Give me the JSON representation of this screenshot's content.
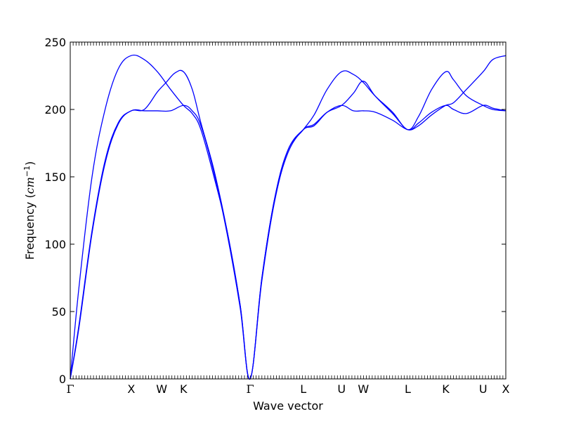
{
  "chart_data": {
    "type": "line",
    "title": "",
    "xlabel": "Wave vector",
    "ylabel": {
      "prefix": "Frequency (",
      "math": "cm",
      "sup": "−1",
      "suffix": ")"
    },
    "ylim": [
      0,
      250
    ],
    "xlim": [
      0,
      1
    ],
    "yticks": [
      0,
      50,
      100,
      150,
      200,
      250
    ],
    "xticks": [
      {
        "label": "Γ",
        "x": 0.0
      },
      {
        "label": "X",
        "x": 0.14
      },
      {
        "label": "W",
        "x": 0.21
      },
      {
        "label": "K",
        "x": 0.26
      },
      {
        "label": "Γ",
        "x": 0.413
      },
      {
        "label": "L",
        "x": 0.535
      },
      {
        "label": "U",
        "x": 0.623
      },
      {
        "label": "W",
        "x": 0.673
      },
      {
        "label": "L",
        "x": 0.775
      },
      {
        "label": "K",
        "x": 0.862
      },
      {
        "label": "U",
        "x": 0.948
      },
      {
        "label": "X",
        "x": 1.0
      }
    ],
    "line_color": "#0000ff",
    "grid": false,
    "legend": "none",
    "series": [
      {
        "points": [
          [
            0,
            0
          ],
          [
            0.02,
            68
          ],
          [
            0.05,
            150
          ],
          [
            0.08,
            200
          ],
          [
            0.11,
            230
          ],
          [
            0.14,
            240
          ],
          [
            0.17,
            237
          ],
          [
            0.2,
            228
          ],
          [
            0.23,
            215
          ],
          [
            0.26,
            203
          ],
          [
            0.28,
            197
          ],
          [
            0.3,
            185
          ],
          [
            0.33,
            150
          ],
          [
            0.36,
            110
          ],
          [
            0.39,
            55
          ],
          [
            0.413,
            0
          ],
          [
            0.44,
            75
          ],
          [
            0.47,
            135
          ],
          [
            0.5,
            170
          ],
          [
            0.535,
            185
          ],
          [
            0.56,
            188
          ],
          [
            0.59,
            198
          ],
          [
            0.623,
            203
          ],
          [
            0.65,
            199
          ],
          [
            0.673,
            199
          ],
          [
            0.7,
            198
          ],
          [
            0.74,
            192
          ],
          [
            0.775,
            185
          ],
          [
            0.8,
            188
          ],
          [
            0.83,
            196
          ],
          [
            0.862,
            203
          ],
          [
            0.88,
            205
          ],
          [
            0.91,
            215
          ],
          [
            0.948,
            228
          ],
          [
            0.97,
            237
          ],
          [
            1.0,
            240
          ]
        ]
      },
      {
        "points": [
          [
            0,
            0
          ],
          [
            0.02,
            40
          ],
          [
            0.05,
            110
          ],
          [
            0.08,
            162
          ],
          [
            0.11,
            190
          ],
          [
            0.14,
            199
          ],
          [
            0.17,
            200
          ],
          [
            0.2,
            213
          ],
          [
            0.22,
            220
          ],
          [
            0.24,
            227
          ],
          [
            0.26,
            228
          ],
          [
            0.28,
            215
          ],
          [
            0.3,
            190
          ],
          [
            0.33,
            155
          ],
          [
            0.36,
            110
          ],
          [
            0.39,
            55
          ],
          [
            0.413,
            0
          ],
          [
            0.44,
            75
          ],
          [
            0.47,
            135
          ],
          [
            0.5,
            170
          ],
          [
            0.535,
            185
          ],
          [
            0.56,
            196
          ],
          [
            0.59,
            215
          ],
          [
            0.623,
            228
          ],
          [
            0.65,
            226
          ],
          [
            0.673,
            220
          ],
          [
            0.7,
            210
          ],
          [
            0.74,
            198
          ],
          [
            0.775,
            185
          ],
          [
            0.8,
            195
          ],
          [
            0.83,
            215
          ],
          [
            0.862,
            228
          ],
          [
            0.88,
            222
          ],
          [
            0.91,
            210
          ],
          [
            0.948,
            203
          ],
          [
            0.97,
            200
          ],
          [
            1.0,
            199
          ]
        ]
      },
      {
        "points": [
          [
            0,
            0
          ],
          [
            0.02,
            38
          ],
          [
            0.05,
            108
          ],
          [
            0.08,
            160
          ],
          [
            0.11,
            189
          ],
          [
            0.14,
            199
          ],
          [
            0.17,
            199
          ],
          [
            0.2,
            199
          ],
          [
            0.23,
            199
          ],
          [
            0.26,
            203
          ],
          [
            0.28,
            199
          ],
          [
            0.3,
            188
          ],
          [
            0.33,
            153
          ],
          [
            0.36,
            108
          ],
          [
            0.39,
            53
          ],
          [
            0.413,
            0
          ],
          [
            0.44,
            73
          ],
          [
            0.47,
            133
          ],
          [
            0.5,
            168
          ],
          [
            0.535,
            185
          ],
          [
            0.56,
            189
          ],
          [
            0.59,
            198
          ],
          [
            0.623,
            203
          ],
          [
            0.65,
            212
          ],
          [
            0.673,
            221
          ],
          [
            0.7,
            210
          ],
          [
            0.74,
            197
          ],
          [
            0.775,
            185
          ],
          [
            0.8,
            190
          ],
          [
            0.83,
            198
          ],
          [
            0.862,
            203
          ],
          [
            0.88,
            200
          ],
          [
            0.91,
            197
          ],
          [
            0.948,
            203
          ],
          [
            0.97,
            201
          ],
          [
            1.0,
            199
          ]
        ]
      }
    ]
  }
}
